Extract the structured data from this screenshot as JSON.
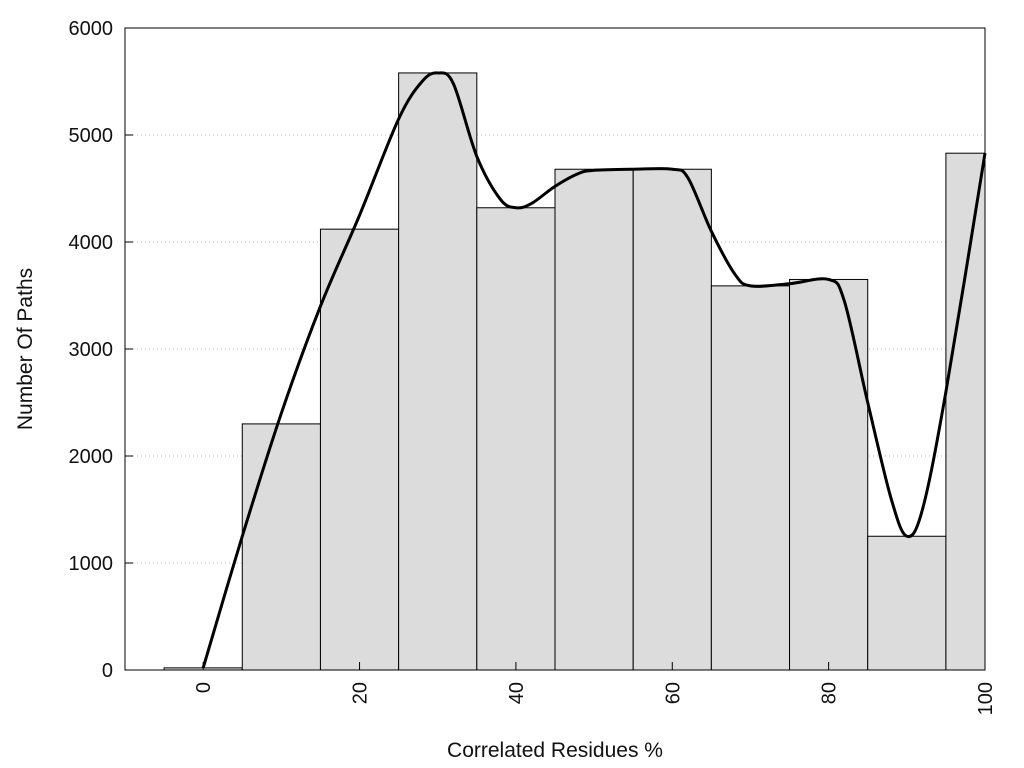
{
  "chart_data": {
    "type": "bar",
    "xlabel": "Correlated Residues %",
    "ylabel": "Number Of Paths",
    "xlim": [
      -10,
      100
    ],
    "ylim": [
      0,
      6000
    ],
    "grid": true,
    "x_ticks": [
      "0",
      "20",
      "40",
      "60",
      "80",
      "100"
    ],
    "y_ticks": [
      "0",
      "1000",
      "2000",
      "3000",
      "4000",
      "5000",
      "6000"
    ],
    "bars": [
      {
        "center": 0,
        "value": 20
      },
      {
        "center": 10,
        "value": 2300
      },
      {
        "center": 20,
        "value": 4120
      },
      {
        "center": 30,
        "value": 5580
      },
      {
        "center": 40,
        "value": 4320
      },
      {
        "center": 50,
        "value": 4680
      },
      {
        "center": 60,
        "value": 4680
      },
      {
        "center": 70,
        "value": 3590
      },
      {
        "center": 80,
        "value": 3650
      },
      {
        "center": 90,
        "value": 1250
      },
      {
        "center": 100,
        "value": 4830
      }
    ],
    "bar_width": 10,
    "smooth_curve": {
      "x": [
        0,
        5,
        10,
        15,
        20,
        25,
        28,
        30,
        32,
        35,
        38,
        40,
        42,
        45,
        48,
        50,
        55,
        60,
        62,
        65,
        68,
        70,
        75,
        80,
        82,
        85,
        88,
        90,
        92,
        95,
        100
      ],
      "y": [
        20,
        1250,
        2400,
        3400,
        4250,
        5150,
        5500,
        5580,
        5480,
        4800,
        4400,
        4320,
        4360,
        4520,
        4640,
        4670,
        4680,
        4680,
        4600,
        4100,
        3700,
        3590,
        3610,
        3650,
        3450,
        2500,
        1600,
        1250,
        1500,
        2600,
        4830
      ]
    },
    "colors": {
      "bar_fill": "#dcdcdc",
      "bar_stroke": "#000000",
      "curve": "#000000"
    }
  }
}
